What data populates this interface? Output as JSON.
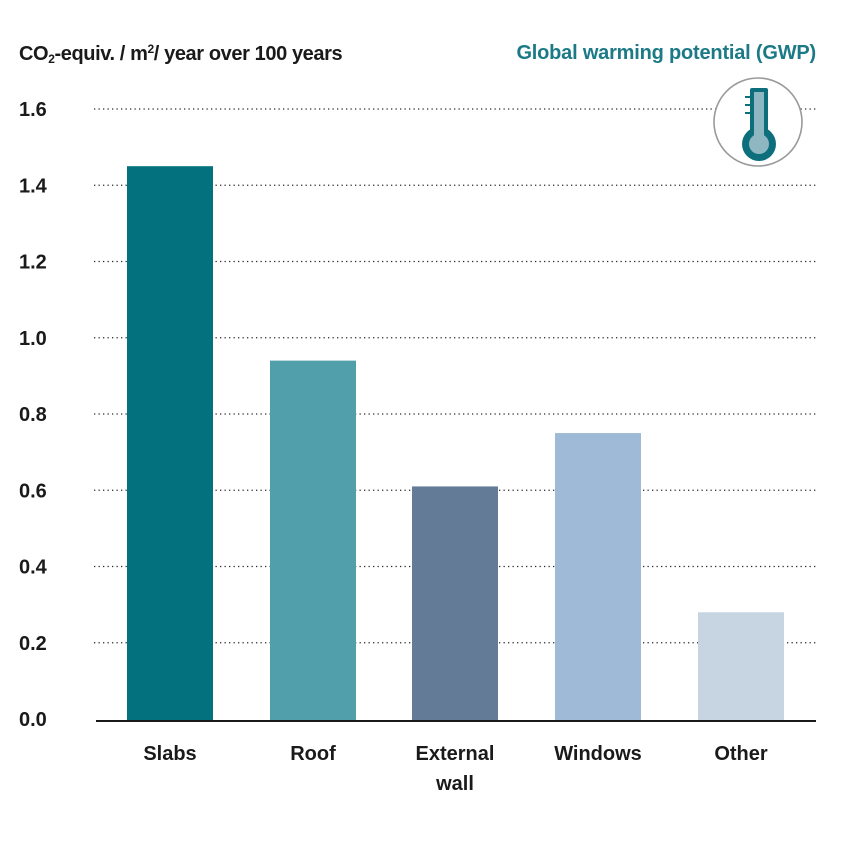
{
  "header": {
    "ylabel_prefix": "CO",
    "ylabel_sub": "2",
    "ylabel_mid": "-equiv. / m",
    "ylabel_sup": "2",
    "ylabel_suffix": "/ year over 100 years",
    "title": "Global warming potential (GWP)"
  },
  "icon": {
    "name": "thermometer-icon",
    "ring_color": "#9a9a9a",
    "fill_color": "#0e6f7c",
    "inner_color": "#8fb7c2"
  },
  "chart_data": {
    "type": "bar",
    "title": "Global warming potential (GWP)",
    "ylabel": "CO2-equiv. / m2 / year over 100 years",
    "xlabel": "",
    "categories": [
      {
        "lines": [
          "Slabs"
        ],
        "value": 1.45,
        "color": "#04717f"
      },
      {
        "lines": [
          "Roof"
        ],
        "value": 0.94,
        "color": "#519fab"
      },
      {
        "lines": [
          "External",
          "wall"
        ],
        "value": 0.61,
        "color": "#647b98"
      },
      {
        "lines": [
          "Windows"
        ],
        "value": 0.75,
        "color": "#9fbad6"
      },
      {
        "lines": [
          "Other"
        ],
        "value": 0.28,
        "color": "#c7d5e3"
      }
    ],
    "yticks": [
      "0.0",
      "0.2",
      "0.4",
      "0.6",
      "0.8",
      "1.0",
      "1.2",
      "1.4",
      "1.6"
    ],
    "ylim": [
      0,
      1.6
    ],
    "grid": true,
    "grid_style": "dotted"
  }
}
